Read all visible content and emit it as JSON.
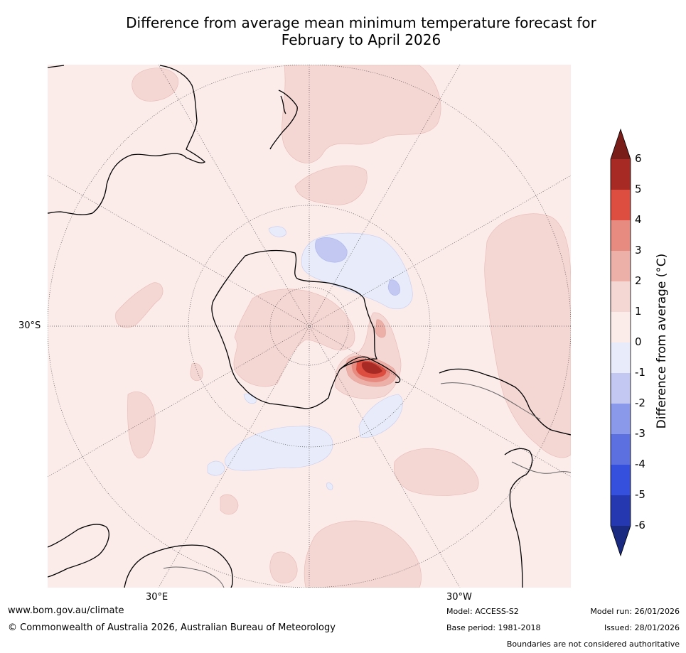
{
  "title_line1": "Difference from average mean minimum temperature forecast for",
  "title_line2": "February to April 2026",
  "map": {
    "lat_label": "30°S",
    "lon_labels": {
      "east": "30°E",
      "west": "30°W"
    }
  },
  "colorbar": {
    "label": "Difference from average (°C)",
    "ticks": [
      "6",
      "5",
      "4",
      "3",
      "2",
      "1",
      "0",
      "-1",
      "-2",
      "-3",
      "-4",
      "-5",
      "-6"
    ],
    "colors": {
      "6_plus": "#7a1e1a",
      "5_6": "#a82a25",
      "4_5": "#dd4e40",
      "3_4": "#e78a7f",
      "2_3": "#edb0a8",
      "1_2": "#f4d6d3",
      "0_1": "#fbecea",
      "m1_0": "#e8ebfa",
      "m2_m1": "#c2c8f2",
      "m3_m2": "#8a99ea",
      "m4_m3": "#5c70e0",
      "m5_m4": "#3550dc",
      "m6_m5": "#2638b0",
      "m6_minus": "#1a2a80"
    }
  },
  "footer": {
    "website": "www.bom.gov.au/climate",
    "copyright": "© Commonwealth of Australia 2026, Australian Bureau of Meteorology",
    "model": "Model: ACCESS-S2",
    "base_period": "Base period: 1981-2018",
    "model_run": "Model run: 26/01/2026",
    "issued": "Issued: 28/01/2026",
    "disclaimer": "Boundaries are not considered authoritative"
  }
}
